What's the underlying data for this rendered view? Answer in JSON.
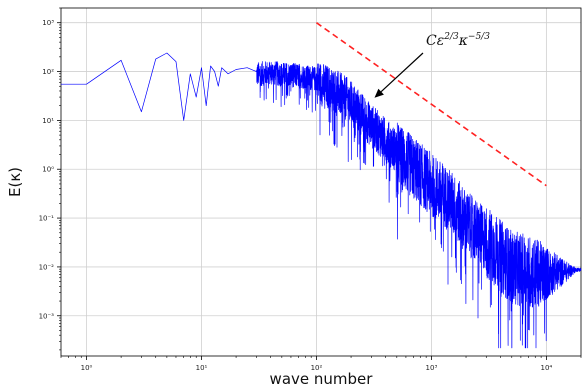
{
  "chart_data": {
    "type": "line",
    "title": "",
    "xlabel": "wave number",
    "ylabel": "E(κ)",
    "xscale": "log",
    "yscale": "log",
    "xlim": [
      0.6,
      20000
    ],
    "ylim": [
      0.00015,
      2000
    ],
    "grid": true,
    "x_ticks": [
      1,
      10,
      100,
      1000,
      10000
    ],
    "x_tick_labels": [
      "10⁰",
      "10¹",
      "10²",
      "10³",
      "10⁴"
    ],
    "y_ticks": [
      0.001,
      0.01,
      0.1,
      1,
      10,
      100,
      1000
    ],
    "y_tick_labels": [
      "10⁻³",
      "10⁻²",
      "10⁻¹",
      "10⁰",
      "10¹",
      "10²",
      "10³"
    ],
    "series": [
      {
        "name": "",
        "color": "#0000ff",
        "style": "solid",
        "x": [
          0.6,
          1,
          2,
          3,
          4,
          5,
          6,
          7,
          8,
          9,
          10,
          11,
          12,
          13,
          14,
          15,
          17,
          20,
          25,
          30,
          40,
          50,
          70,
          100,
          150,
          200,
          300,
          500,
          700,
          1000,
          1500,
          2000,
          3000,
          4000,
          5000,
          7000,
          10000,
          15000,
          20000
        ],
        "y": [
          55,
          55,
          170,
          15,
          180,
          240,
          160,
          10,
          90,
          30,
          120,
          20,
          130,
          100,
          50,
          120,
          90,
          110,
          120,
          100,
          110,
          100,
          95,
          80,
          50,
          30,
          10,
          3,
          1.5,
          0.7,
          0.3,
          0.12,
          0.05,
          0.025,
          0.015,
          0.012,
          0.01,
          0.009,
          0.009
        ]
      },
      {
        "name": "",
        "color": "#ff2222",
        "style": "dashed",
        "x": [
          100,
          10000
        ],
        "y": [
          1000,
          0.46
        ]
      }
    ],
    "annotations": [
      {
        "text": "Cε^{2/3}κ^{-5/3}",
        "base": "Cε",
        "sup1": "2/3",
        "mid": "κ",
        "sup2": "−5/3",
        "arrow_to": [
          320,
          29
        ]
      }
    ]
  }
}
